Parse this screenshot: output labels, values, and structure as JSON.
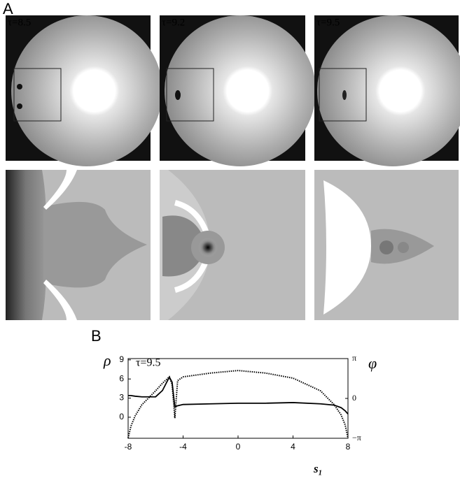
{
  "panel_a": {
    "label": "A",
    "frames": [
      {
        "tau": "τ=8.5"
      },
      {
        "tau": "τ=9.2"
      },
      {
        "tau": "τ=9.5"
      }
    ]
  },
  "chart_data": {
    "type": "line",
    "label": "B",
    "annotation": "τ=9.5",
    "ylabel": "ρ",
    "y2label": "φ",
    "xlabel": "s₁",
    "x": [
      -8,
      -7.8,
      -7.5,
      -7,
      -6,
      -5.5,
      -5,
      -4.8,
      -4.6,
      -4.4,
      -4,
      -2,
      0,
      2,
      4,
      6,
      7,
      7.5,
      7.8,
      8
    ],
    "series": [
      {
        "color": "#000000",
        "dash": "solid",
        "values": [
          3.4,
          3.4,
          3.3,
          3.2,
          3.2,
          4.2,
          6.3,
          5.5,
          1.6,
          1.8,
          2.0,
          2.1,
          2.2,
          2.2,
          2.3,
          2.1,
          1.9,
          1.5,
          1.0,
          0.5
        ]
      },
      {
        "color": "#000000",
        "dash": "dotted",
        "axis": "y2",
        "values": [
          -3.14,
          -2.2,
          -1.4,
          -0.5,
          0.6,
          1.2,
          1.7,
          1.1,
          -1.55,
          1.4,
          1.7,
          2.0,
          2.2,
          2.0,
          1.6,
          0.6,
          -0.5,
          -1.3,
          -2.1,
          -3.14
        ]
      }
    ],
    "xlim": [
      -8,
      8
    ],
    "xticks": [
      -8,
      -4,
      0,
      4,
      8
    ],
    "ylim": [
      -3.3,
      9.2
    ],
    "yticks": [
      0,
      3,
      6,
      9
    ],
    "y2lim": [
      -3.1416,
      3.1416
    ],
    "y2ticks": [
      {
        "value": 3.1416,
        "label": "π"
      },
      0,
      {
        "value": -3.1416,
        "label": "−π"
      }
    ]
  }
}
